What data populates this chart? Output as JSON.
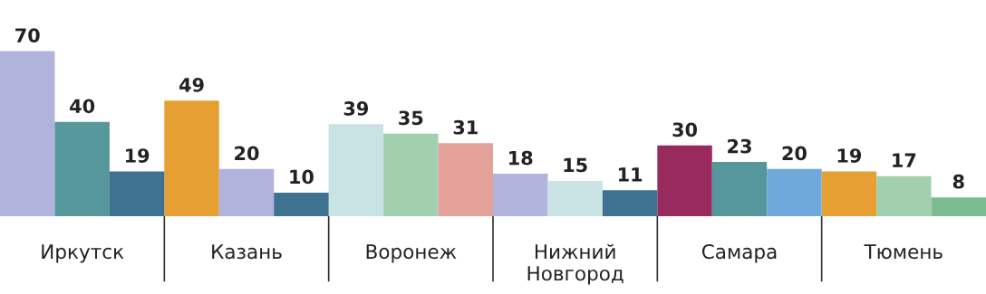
{
  "chart_data": {
    "type": "bar",
    "categories": [
      "Иркутск",
      "Казань",
      "Воронеж",
      "Нижний\nНовгород",
      "Самара",
      "Тюмень"
    ],
    "series": [
      {
        "values": [
          70,
          49,
          39,
          18,
          30,
          19
        ],
        "colors": [
          "#b0b3dc",
          "#e59f33",
          "#c9e3e4",
          "#b0b3dc",
          "#982a5e",
          "#e59f33"
        ]
      },
      {
        "values": [
          40,
          20,
          35,
          15,
          23,
          17
        ],
        "colors": [
          "#55979a",
          "#b0b3dc",
          "#a2d0ae",
          "#c9e3e4",
          "#55979a",
          "#a2d0ae"
        ]
      },
      {
        "values": [
          19,
          10,
          31,
          11,
          20,
          8
        ],
        "colors": [
          "#3f7190",
          "#3f7190",
          "#e3a19a",
          "#3f7190",
          "#6fa9dc",
          "#7bbd91"
        ]
      }
    ],
    "data_labels": true,
    "grid": false,
    "legend": false
  }
}
